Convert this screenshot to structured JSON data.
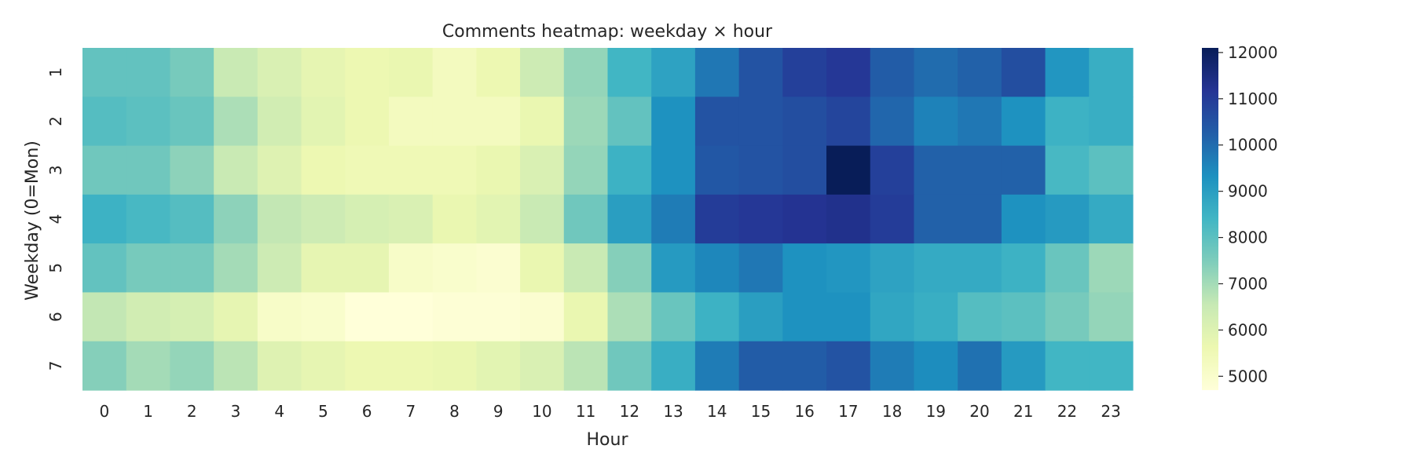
{
  "chart_data": {
    "type": "heatmap",
    "title": "Comments heatmap: weekday × hour",
    "xlabel": "Hour",
    "ylabel": "Weekday (0=Mon)",
    "x_categories": [
      "0",
      "1",
      "2",
      "3",
      "4",
      "5",
      "6",
      "7",
      "8",
      "9",
      "10",
      "11",
      "12",
      "13",
      "14",
      "15",
      "16",
      "17",
      "18",
      "19",
      "20",
      "21",
      "22",
      "23"
    ],
    "y_categories": [
      "1",
      "2",
      "3",
      "4",
      "5",
      "6",
      "7"
    ],
    "values": [
      [
        7900,
        7900,
        7600,
        6500,
        6100,
        5800,
        5600,
        5700,
        5300,
        5600,
        6400,
        7200,
        8400,
        8900,
        9800,
        10500,
        10900,
        11100,
        10300,
        10000,
        10200,
        10600,
        9200,
        8600
      ],
      [
        8100,
        8000,
        7800,
        6900,
        6300,
        5900,
        5600,
        5300,
        5300,
        5300,
        5700,
        7100,
        7900,
        9300,
        10500,
        10500,
        10600,
        10800,
        10100,
        9600,
        9800,
        9300,
        8500,
        8600
      ],
      [
        7700,
        7700,
        7300,
        6500,
        6000,
        5600,
        5500,
        5500,
        5500,
        5700,
        6100,
        7200,
        8500,
        9300,
        10400,
        10500,
        10600,
        12100,
        10900,
        10200,
        10200,
        10200,
        8300,
        8000
      ],
      [
        8500,
        8300,
        8100,
        7300,
        6600,
        6400,
        6200,
        6100,
        5700,
        5900,
        6500,
        7700,
        9000,
        9700,
        11000,
        11100,
        11200,
        11300,
        11000,
        10200,
        10200,
        9300,
        9100,
        8700
      ],
      [
        7900,
        7600,
        7600,
        7000,
        6400,
        5800,
        5800,
        5100,
        5000,
        4900,
        5700,
        6500,
        7400,
        9100,
        9500,
        9800,
        9300,
        9200,
        8900,
        8700,
        8700,
        8500,
        7800,
        7100
      ],
      [
        6600,
        6300,
        6200,
        5800,
        5100,
        5000,
        4700,
        4700,
        4800,
        4800,
        4900,
        5700,
        6900,
        7800,
        8500,
        9000,
        9300,
        9300,
        8800,
        8600,
        8100,
        8000,
        7600,
        7200
      ],
      [
        7400,
        7000,
        7200,
        6700,
        6000,
        5800,
        5600,
        5600,
        5700,
        5900,
        6100,
        6700,
        7700,
        8600,
        9700,
        10300,
        10300,
        10500,
        9700,
        9400,
        9900,
        9100,
        8400,
        8400
      ]
    ],
    "colorbar": {
      "min": 4700,
      "max": 12100,
      "ticks": [
        5000,
        6000,
        7000,
        8000,
        9000,
        10000,
        11000,
        12000
      ]
    },
    "colormap": "YlGnBu",
    "grid": false
  }
}
